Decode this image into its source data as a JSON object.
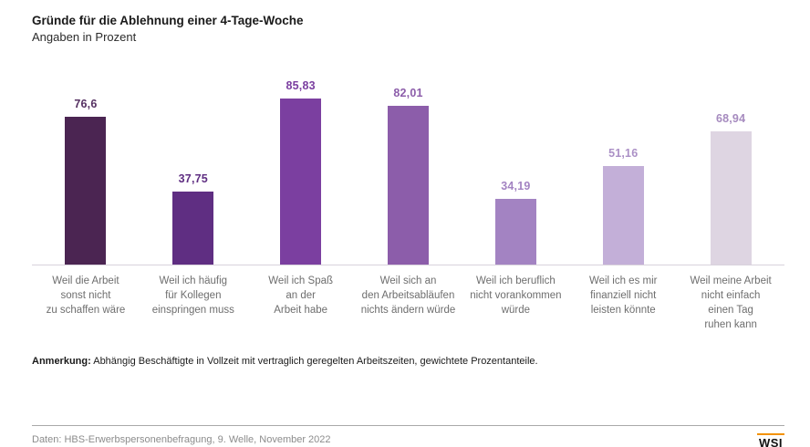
{
  "header": {
    "title": "Gründe für die Ablehnung einer 4-Tage-Woche",
    "subtitle": "Angaben in Prozent"
  },
  "chart_data": {
    "type": "bar",
    "title": "Gründe für die Ablehnung einer 4-Tage-Woche",
    "subtitle": "Angaben in Prozent",
    "unit": "percent",
    "ylim": [
      0,
      100
    ],
    "grid": false,
    "legend": "none",
    "categories": [
      "Weil die Arbeit sonst nicht zu schaffen wäre",
      "Weil ich häufig für Kollegen einspringen muss",
      "Weil ich Spaß an der Arbeit habe",
      "Weil sich an den Arbeitsabläufen nichts ändern würde",
      "Weil ich beruflich nicht vorankommen würde",
      "Weil ich es mir finanziell nicht leisten könnte",
      "Weil meine Arbeit nicht einfach einen Tag ruhen kann"
    ],
    "category_lines": [
      [
        "Weil die Arbeit",
        "sonst nicht",
        "zu schaffen wäre"
      ],
      [
        "Weil ich häufig",
        "für Kollegen",
        "einspringen muss"
      ],
      [
        "Weil ich Spaß",
        "an der",
        "Arbeit habe"
      ],
      [
        "Weil sich an",
        "den Arbeitsabläufen",
        "nichts ändern würde"
      ],
      [
        "Weil ich beruflich",
        "nicht vorankommen",
        "würde"
      ],
      [
        "Weil ich es mir",
        "finanziell nicht",
        "leisten könnte"
      ],
      [
        "Weil meine Arbeit",
        "nicht einfach",
        "einen Tag",
        "ruhen kann"
      ]
    ],
    "values": [
      76.6,
      37.75,
      85.83,
      82.01,
      34.19,
      51.16,
      68.94
    ],
    "value_labels": [
      "76,6",
      "37,75",
      "85,83",
      "82,01",
      "34,19",
      "51,16",
      "68,94"
    ],
    "bar_colors": [
      "#4b2552",
      "#5f2e82",
      "#7b3fa0",
      "#8c5daa",
      "#a383c2",
      "#c3afd8",
      "#ded5e2"
    ],
    "value_label_colors": [
      "#553061",
      "#5f2e82",
      "#7b3fa0",
      "#8c5daa",
      "#a383c2",
      "#ab90c6",
      "#a68bbf"
    ]
  },
  "note": {
    "label": "Anmerkung:",
    "text": " Abhängig Beschäftigte in Vollzeit mit vertraglich geregelten Arbeitszeiten, gewichtete Prozentanteile."
  },
  "footer": {
    "source": "Daten: HBS-Erwerbspersonenbefragung, 9. Welle, November 2022",
    "logo_text": "WSI"
  },
  "colors": {
    "axis_line": "#d8d2dc",
    "category_text": "#6e6e6e",
    "source_text": "#8c8c8c",
    "logo_orange": "#f39200",
    "logo_red": "#e30613"
  }
}
